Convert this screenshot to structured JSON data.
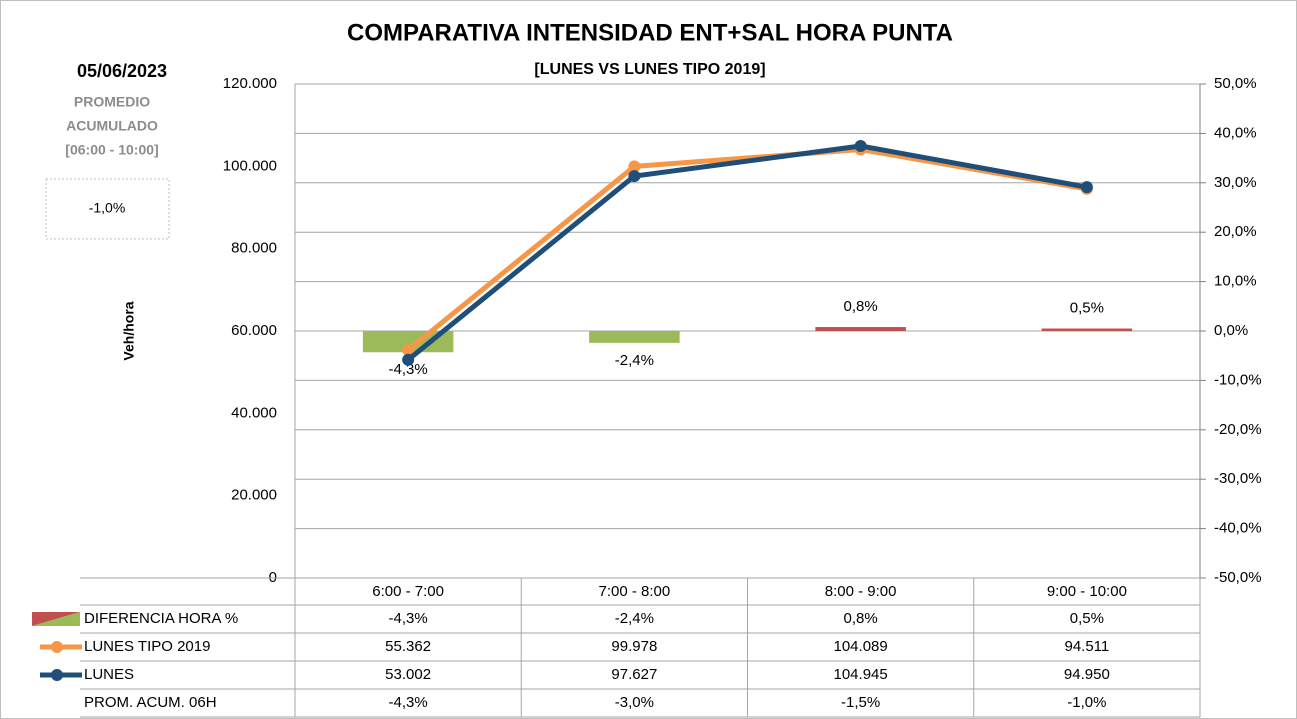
{
  "chart_data": {
    "type": "combo",
    "title": "COMPARATIVA INTENSIDAD ENT+SAL HORA PUNTA",
    "subtitle": "[LUNES VS LUNES TIPO 2019]",
    "date": "05/06/2023",
    "side_note": [
      "PROMEDIO",
      "ACUMULADO",
      "[06:00 - 10:00]"
    ],
    "side_box": "-1,0%",
    "y_label": "Veh/hora",
    "categories": [
      "6:00 - 7:00",
      "7:00 - 8:00",
      "8:00 - 9:00",
      "9:00 - 10:00"
    ],
    "ylim": [
      0,
      120000
    ],
    "yticks": [
      0,
      {
        "value": 20000,
        "label": "20.000"
      },
      {
        "value": 40000,
        "label": "40.000"
      },
      {
        "value": 60000,
        "label": "60.000"
      },
      {
        "value": 80000,
        "label": "80.000"
      },
      {
        "value": 100000,
        "label": "100.000"
      },
      {
        "value": 120000,
        "label": "120.000"
      }
    ],
    "y2lim": [
      -50,
      50
    ],
    "y2ticks": [
      {
        "value": -50,
        "label": "-50,0%"
      },
      {
        "value": -40,
        "label": "-40,0%"
      },
      {
        "value": -30,
        "label": "-30,0%"
      },
      {
        "value": -20,
        "label": "-20,0%"
      },
      {
        "value": -10,
        "label": "-10,0%"
      },
      {
        "value": 0,
        "label": "0,0%"
      },
      {
        "value": 10,
        "label": "10,0%"
      },
      {
        "value": 20,
        "label": "20,0%"
      },
      {
        "value": 30,
        "label": "30,0%"
      },
      {
        "value": 40,
        "label": "40,0%"
      },
      {
        "value": 50,
        "label": "50,0%"
      }
    ],
    "grid": "y2",
    "series": [
      {
        "name": "DIFERENCIA HORA %",
        "type": "bar",
        "axis": "y2",
        "color": "#c0504d",
        "negative_color": "#9bbb59",
        "values": [
          -4.3,
          -2.4,
          0.8,
          0.5
        ],
        "value_labels": [
          "-4,3%",
          "-2,4%",
          "0,8%",
          "0,5%"
        ]
      },
      {
        "name": "LUNES TIPO 2019",
        "type": "line",
        "color": "#f79646",
        "values": [
          55362,
          99978,
          104089,
          94511
        ],
        "value_labels": [
          "55.362",
          "99.978",
          "104.089",
          "94.511"
        ]
      },
      {
        "name": "LUNES",
        "type": "line",
        "color": "#1f4e79",
        "values": [
          53002,
          97627,
          104945,
          94950
        ],
        "value_labels": [
          "53.002",
          "97.627",
          "104.945",
          "94.950"
        ]
      }
    ],
    "table_rows": [
      {
        "name": "PROM. ACUM. 06H",
        "values": [
          -4.3,
          -3.0,
          -1.5,
          -1.0
        ],
        "value_labels": [
          "-4,3%",
          "-3,0%",
          "-1,5%",
          "-1,0%"
        ]
      }
    ]
  }
}
